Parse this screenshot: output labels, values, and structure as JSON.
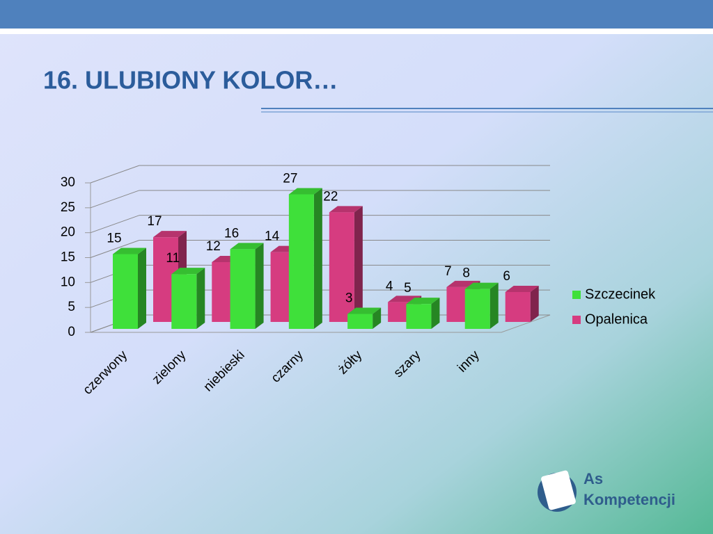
{
  "chart_data": {
    "type": "bar3d",
    "title": "16. ULUBIONY KOLOR…",
    "categories": [
      "czerwony",
      "zielony",
      "niebieski",
      "czarny",
      "żółty",
      "szary",
      "inny"
    ],
    "series": [
      {
        "name": "Szczecinek",
        "color": "#3fe03a",
        "values": [
          15,
          11,
          16,
          27,
          3,
          5,
          8
        ]
      },
      {
        "name": "Opalenica",
        "color": "#d63c80",
        "values": [
          17,
          12,
          14,
          22,
          4,
          7,
          6
        ]
      }
    ],
    "ylim": [
      0,
      30
    ],
    "yticks": [
      0,
      5,
      10,
      15,
      20,
      25,
      30
    ],
    "grid": true,
    "legend": "right"
  },
  "logo": {
    "line1": "As",
    "line2": "Kompetencji"
  }
}
